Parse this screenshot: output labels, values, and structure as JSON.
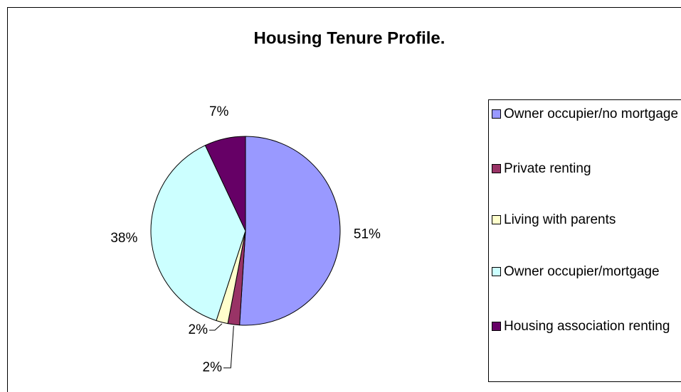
{
  "chart_data": {
    "type": "pie",
    "title": "Housing Tenure Profile.",
    "categories": [
      "Owner occupier/no mortgage",
      "Private renting",
      "Living with parents",
      "Owner occupier/mortgage",
      "Housing association renting"
    ],
    "values": [
      51,
      2,
      2,
      38,
      7
    ],
    "value_labels": [
      "51%",
      "2%",
      "2%",
      "38%",
      "7%"
    ],
    "colors": [
      "#9999ff",
      "#993366",
      "#ffffcc",
      "#ccffff",
      "#660066"
    ],
    "legend": "right"
  }
}
